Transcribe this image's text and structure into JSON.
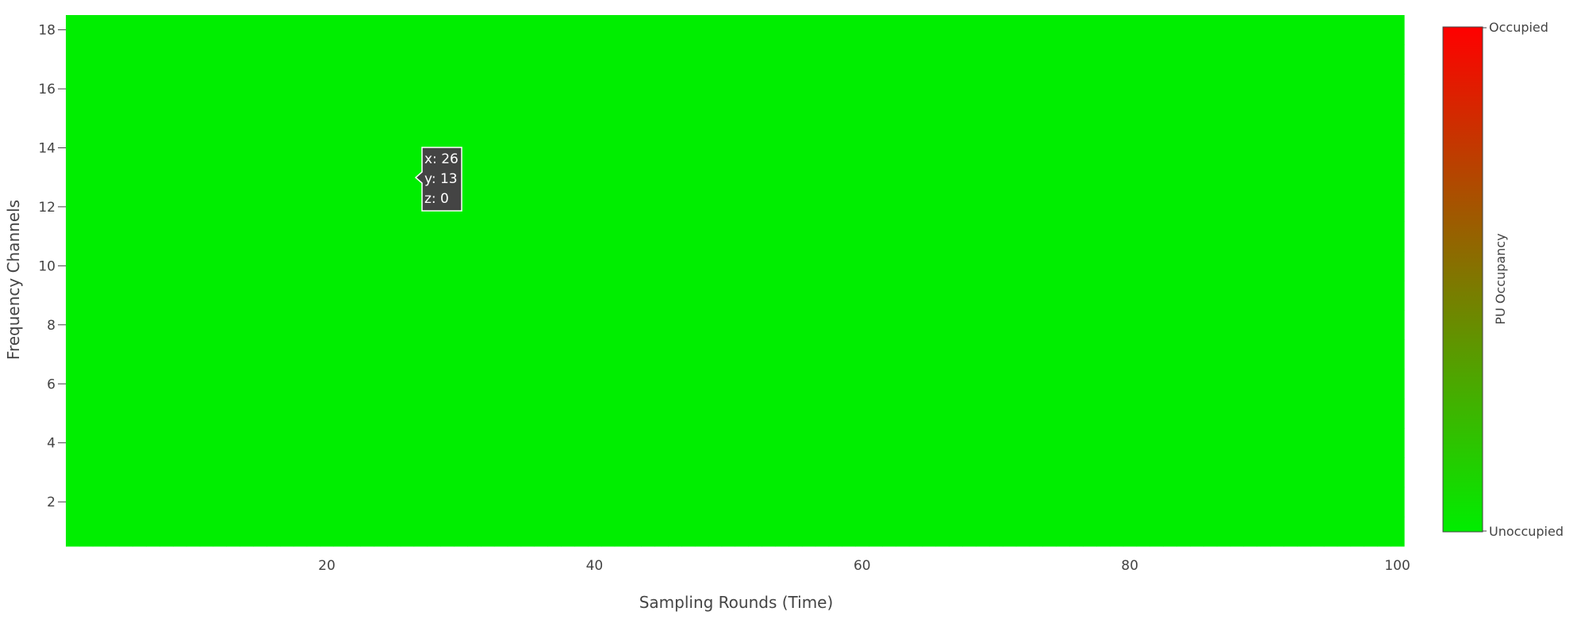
{
  "chart_data": {
    "type": "heatmap",
    "title": "",
    "xlabel": "Sampling Rounds (Time)",
    "ylabel": "Frequency Channels",
    "x_range": [
      1,
      100
    ],
    "y_range": [
      1,
      18
    ],
    "x_ticks": [
      20,
      40,
      60,
      80,
      100
    ],
    "y_ticks": [
      2,
      4,
      6,
      8,
      10,
      12,
      14,
      16,
      18
    ],
    "z_values": [
      0,
      1
    ],
    "colorscale": [
      {
        "value": 0,
        "color": "#00ee00"
      },
      {
        "value": 1,
        "color": "#ff0000"
      }
    ],
    "colorbar": {
      "title": "PU Occupancy",
      "max_label": "Occupied",
      "min_label": "Unoccupied"
    },
    "grid": false,
    "hover": {
      "x_text": "x: 26",
      "y_text": "y: 13",
      "z_text": "z: 0"
    },
    "rows": [
      "0000000000000000000000000000000000000000000000000000000000000000000000000000000000000000000000000000",
      "0000000000000000000000000000000000000000000000000000000000000000000000000000000000000000000000000000",
      "0000000000000000000000000000000000000000000000000000000000000000000000000000000000000000000000000000",
      "0000000000000000000000000000000000000000000000000000000000000000000000000000000000000000000000000000",
      "0000000000000000000000000000000000000000000000000000000000000000000000000000000000000000000000000000",
      "0000000000000000000000000000000000000000000000000000000000000000000000000000000000000000000000000000",
      "0000000000000000000000000000000000000000000000000000000000000000000000000000000000000000000000000000",
      "0000000000000000000000000000000000000000000000000000000000000000000000000000000000000000000000000000",
      "0000000000000000000000000000000000000000000000000000000000000000000000000000000000000000000000000000",
      "0000000000000000000000000000000000000000000000000000000000000000000000000000000000000000000000000000",
      "0000000000000000000000000000000000000000000000000000000000000000000000000000000000000000000000000000",
      "0000000000000000000000000000000000000000000000000000000000000000000000000000000000000000000000000000",
      "0000000000000000000000000000000000000000000000000000000000000000000000000000000000000000000000000000",
      "0000000000000000000000000000000000000000000000000000000000000000000000000000000000000000000000000000",
      "0000000000000000000000000000000000000000000000000000000000000000000000000000000000000000000000000000",
      "0000000000000000000000000000000000000000000000000000000000000000000000000000000000000000000000000000",
      "0000000000000000000000000000000000000000000000000000000000000000000000000000000000000000000000000000",
      "0000000000000000000000000000000000000000000000000000000000000000000000000000000000000000000000000000"
    ]
  }
}
